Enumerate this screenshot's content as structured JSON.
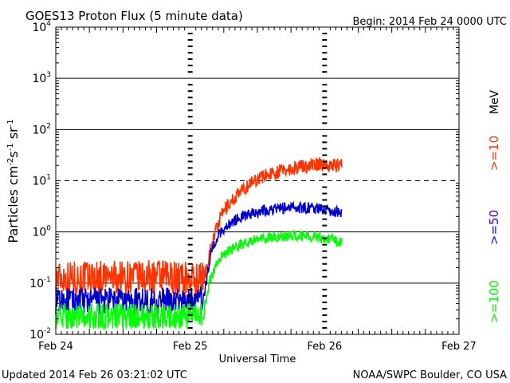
{
  "chart_data": {
    "type": "line",
    "title": "GOES13 Proton Flux (5 minute data)",
    "begin_label": "Begin: 2014 Feb 24 0000 UTC",
    "xlabel": "Universal Time",
    "ylabel_main": "Particles cm",
    "ylabel_sup1": "-2",
    "ylabel_s": "s",
    "ylabel_sup2": "-1",
    "ylabel_sr": " sr",
    "ylabel_sup3": "-1",
    "x_unit": "days since Feb 24 00:00 UTC",
    "xlim": [
      0,
      3
    ],
    "yscale": "log",
    "ylim": [
      0.01,
      10000
    ],
    "x_ticks": [
      {
        "value": 0,
        "label": "Feb 24"
      },
      {
        "value": 1,
        "label": "Feb 25"
      },
      {
        "value": 2,
        "label": "Feb 26"
      },
      {
        "value": 3,
        "label": "Feb 27"
      }
    ],
    "y_ticks": [
      {
        "value": 0.01,
        "base": "10",
        "exp": "-2"
      },
      {
        "value": 0.1,
        "base": "10",
        "exp": "-1"
      },
      {
        "value": 1,
        "base": "10",
        "exp": "0"
      },
      {
        "value": 10,
        "base": "10",
        "exp": "1"
      },
      {
        "value": 100,
        "base": "10",
        "exp": "2"
      },
      {
        "value": 1000,
        "base": "10",
        "exp": "3"
      },
      {
        "value": 10000,
        "base": "10",
        "exp": "4"
      }
    ],
    "dashed_threshold": 10,
    "legend_unit": "MeV",
    "series": [
      {
        "name": ">=10",
        "color": "#ff3300",
        "x": [
          0,
          0.15,
          0.3,
          0.45,
          0.6,
          0.75,
          0.9,
          1.0,
          1.1,
          1.15,
          1.2,
          1.25,
          1.3,
          1.35,
          1.4,
          1.45,
          1.5,
          1.55,
          1.6,
          1.7,
          1.8,
          1.9,
          2.0,
          2.07,
          2.13
        ],
        "y": [
          0.13,
          0.13,
          0.13,
          0.13,
          0.13,
          0.13,
          0.13,
          0.12,
          0.12,
          0.45,
          1.3,
          2.6,
          3.8,
          5.2,
          6.8,
          9.0,
          11.0,
          12.5,
          14.0,
          16.0,
          18.5,
          20.5,
          21.0,
          20.0,
          19.5
        ],
        "noise": 0.28
      },
      {
        "name": ">=50",
        "color": "#0000cc",
        "x": [
          0,
          0.15,
          0.3,
          0.45,
          0.6,
          0.75,
          0.9,
          1.0,
          1.1,
          1.15,
          1.2,
          1.25,
          1.3,
          1.35,
          1.4,
          1.45,
          1.5,
          1.55,
          1.6,
          1.7,
          1.8,
          1.9,
          2.0,
          2.07,
          2.13
        ],
        "y": [
          0.045,
          0.045,
          0.045,
          0.045,
          0.045,
          0.045,
          0.045,
          0.045,
          0.05,
          0.35,
          0.8,
          1.15,
          1.5,
          1.8,
          2.05,
          2.3,
          2.5,
          2.65,
          2.8,
          2.95,
          3.0,
          2.95,
          2.8,
          2.5,
          2.4
        ],
        "noise": 0.22
      },
      {
        "name": ">=100",
        "color": "#00ff00",
        "x": [
          0,
          0.15,
          0.3,
          0.45,
          0.6,
          0.75,
          0.9,
          1.0,
          1.1,
          1.15,
          1.2,
          1.25,
          1.3,
          1.35,
          1.4,
          1.45,
          1.5,
          1.55,
          1.6,
          1.7,
          1.8,
          1.9,
          2.0,
          2.07,
          2.13
        ],
        "y": [
          0.022,
          0.022,
          0.022,
          0.022,
          0.022,
          0.022,
          0.022,
          0.022,
          0.025,
          0.12,
          0.26,
          0.36,
          0.44,
          0.52,
          0.6,
          0.66,
          0.7,
          0.74,
          0.78,
          0.82,
          0.85,
          0.83,
          0.78,
          0.68,
          0.6
        ],
        "noise": 0.22
      }
    ]
  },
  "footer": {
    "updated": "Updated 2014 Feb 26 03:21:02 UTC",
    "source": "NOAA/SWPC Boulder, CO USA"
  }
}
